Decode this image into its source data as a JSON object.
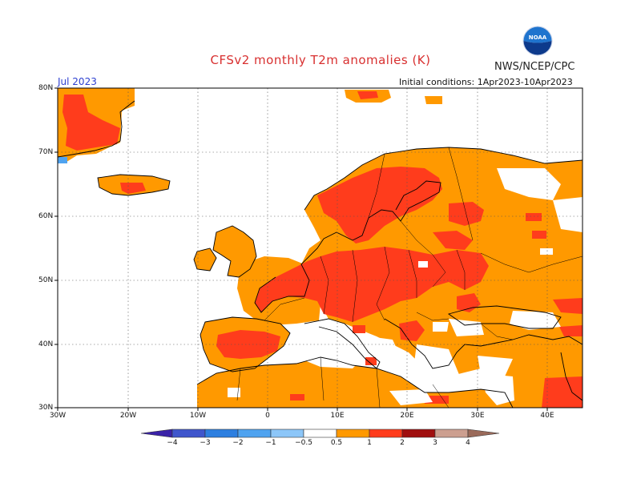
{
  "header": {
    "title": "CFSv2 monthly T2m anomalies (K)",
    "agency": "NWS/NCEP/CPC",
    "logo_text": "NOAA",
    "month": "Jul 2023",
    "initial_conditions": "Initial conditions: 1Apr2023-10Apr2023"
  },
  "map": {
    "lat_labels": [
      "80N",
      "70N",
      "60N",
      "50N",
      "40N",
      "30N"
    ],
    "lon_labels": [
      "30W",
      "20W",
      "10W",
      "0",
      "10E",
      "20E",
      "30E",
      "40E"
    ],
    "land_color": "#ffffff",
    "grid": true
  },
  "colorbar": {
    "labels": [
      "−4",
      "−3",
      "−2",
      "−1",
      "−0.5",
      "0.5",
      "1",
      "2",
      "3",
      "4"
    ],
    "colors": [
      "#3a22a8",
      "#3f56cc",
      "#2d7fe0",
      "#4fa3f0",
      "#8cc6f8",
      "#ffffff",
      "#ff9900",
      "#ff3c1c",
      "#a00f0f",
      "#cc9f90",
      "#9a6a5a"
    ]
  },
  "colors": {
    "anomaly_0_5_1": "#ff9900",
    "anomaly_1_2": "#ff3c1c",
    "anomaly_neg": "#4fa3f0",
    "coastline": "#000000"
  }
}
